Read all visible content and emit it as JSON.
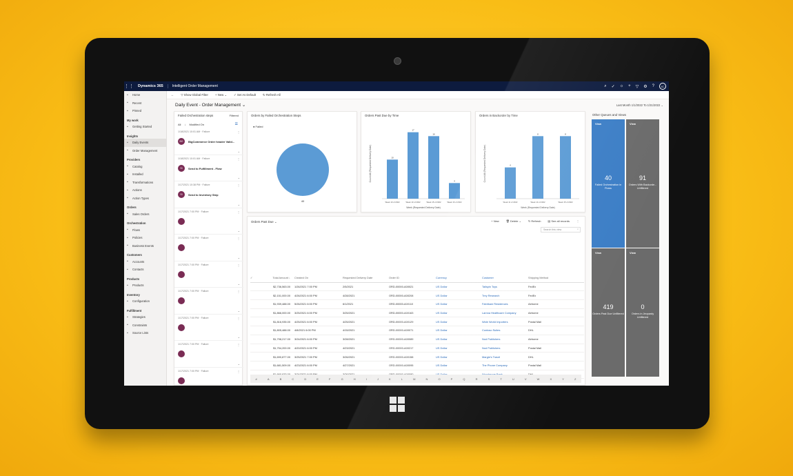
{
  "topbar": {
    "brand": "Dynamics 365",
    "app": "Intelligent Order Management",
    "avatar": "IC"
  },
  "sidebar": {
    "items": [
      {
        "label": "Home",
        "icon": "home-icon",
        "head": false
      },
      {
        "label": "Recent",
        "icon": "clock-icon",
        "head": false
      },
      {
        "label": "Pinned",
        "icon": "pin-icon",
        "head": false
      },
      {
        "label": "My work",
        "head": true
      },
      {
        "label": "Getting Started",
        "icon": "doc-icon",
        "head": false
      },
      {
        "label": "Insights",
        "head": true
      },
      {
        "label": "Daily Events",
        "icon": "chart-icon",
        "head": false,
        "active": true
      },
      {
        "label": "Order Management",
        "icon": "chart-icon",
        "head": false
      },
      {
        "label": "Providers",
        "head": true
      },
      {
        "label": "Catalog",
        "icon": "grid-icon",
        "head": false
      },
      {
        "label": "Installed",
        "icon": "download-icon",
        "head": false
      },
      {
        "label": "Transformations",
        "icon": "transform-icon",
        "head": false
      },
      {
        "label": "Actions",
        "icon": "action-icon",
        "head": false
      },
      {
        "label": "Action Types",
        "icon": "action-icon",
        "head": false
      },
      {
        "label": "Orders",
        "head": true
      },
      {
        "label": "Sales Orders",
        "icon": "doc-icon",
        "head": false
      },
      {
        "label": "Orchestration",
        "head": true
      },
      {
        "label": "Flows",
        "icon": "flow-icon",
        "head": false
      },
      {
        "label": "Policies",
        "icon": "policy-icon",
        "head": false
      },
      {
        "label": "Business Events",
        "icon": "event-icon",
        "head": false
      },
      {
        "label": "Customers",
        "head": true
      },
      {
        "label": "Accounts",
        "icon": "account-icon",
        "head": false
      },
      {
        "label": "Contacts",
        "icon": "contact-icon",
        "head": false
      },
      {
        "label": "Products",
        "head": true
      },
      {
        "label": "Products",
        "icon": "box-icon",
        "head": false
      },
      {
        "label": "Inventory",
        "head": true
      },
      {
        "label": "Configuration",
        "icon": "config-icon",
        "head": false
      },
      {
        "label": "Fulfillment",
        "head": true
      },
      {
        "label": "Strategies",
        "icon": "strategy-icon",
        "head": false
      },
      {
        "label": "Constraints",
        "icon": "constraint-icon",
        "head": false
      },
      {
        "label": "Source Lists",
        "icon": "list-icon",
        "head": false
      }
    ]
  },
  "cmdbar": {
    "global_filter": "Show Global Filter",
    "new": "New",
    "set_default": "Set As Default",
    "refresh_all": "Refresh All"
  },
  "page": {
    "title": "Daily Event - Order Management",
    "date_range": "Last Month 1/1/2022 To 1/31/2022"
  },
  "failed_steps": {
    "title": "Failed Orchestration steps",
    "filtered": "Filtered",
    "sort_all": "All",
    "sort_label": "Modified On",
    "items": [
      {
        "meta": "1/18/2021 10:01 AM · Failure",
        "initials": "BO",
        "text": "BigCommerce Order header Valid..."
      },
      {
        "meta": "1/18/2021 10:01 AM · Failure",
        "initials": "SI",
        "text": "Send to Fulfillment - Flow"
      },
      {
        "meta": "1/17/2021 10:38 PM · Failure",
        "initials": "SI",
        "text": "Send to Inventory Step"
      },
      {
        "meta": "1/17/2021 7:00 PM · Failure",
        "initials": "",
        "text": ""
      },
      {
        "meta": "1/17/2021 7:00 PM · Failure",
        "initials": "",
        "text": ""
      },
      {
        "meta": "1/17/2021 7:00 PM · Failure",
        "initials": "",
        "text": ""
      },
      {
        "meta": "1/17/2021 7:00 PM · Failure",
        "initials": "",
        "text": ""
      },
      {
        "meta": "1/17/2021 7:00 PM · Failure",
        "initials": "",
        "text": ""
      },
      {
        "meta": "1/17/2021 7:00 PM · Failure",
        "initials": "",
        "text": ""
      },
      {
        "meta": "1/17/2021 7:00 PM · Failure",
        "initials": "",
        "text": ""
      }
    ]
  },
  "chart_data": [
    {
      "type": "pie",
      "title": "Orders by Failed Orchestration Steps",
      "legend": [
        "Failed"
      ],
      "values": [
        40
      ],
      "colors": [
        "#5b9bd5"
      ]
    },
    {
      "type": "bar",
      "title": "Orders Past Due by Time",
      "categories": [
        "Week 10 of 2022",
        "Week 13 of 2022",
        "Week 15 of 2022",
        "Week 16 of 2022"
      ],
      "values": [
        10,
        17,
        16,
        4
      ],
      "ylim": [
        0,
        18
      ],
      "xlabel": "Week (Requested Delivery Date)",
      "ylabel": "Count:All (Requested Delivery Date)"
    },
    {
      "type": "bar",
      "title": "Orders in Backorder by Time",
      "categories": [
        "Week 11 of 2022",
        "Week 14 of 2022",
        "Week 15 of 2022"
      ],
      "values": [
        4,
        8,
        8
      ],
      "ylim": [
        0,
        9
      ],
      "xlabel": "Week (Requested Delivery Date)",
      "ylabel": "Count:All (Requested Delivery Date)"
    }
  ],
  "orders_grid": {
    "title": "Orders Past Due",
    "new": "New",
    "delete": "Delete",
    "refresh": "Refresh",
    "see_all": "See all records",
    "search_placeholder": "Search this view",
    "columns": [
      "Total Amount ↓",
      "Created On",
      "Requested Delivery Date",
      "Order ID",
      "Currency",
      "Customer",
      "Shipping Method"
    ],
    "rows": [
      [
        "$2,736,563.00",
        "1/26/2021 7:00 PM",
        "2/5/2021",
        "ORD-00000-A00021",
        "US Dollar",
        "Tailspin Toys",
        "FedEx"
      ],
      [
        "$2,151,000.00",
        "4/26/2021 6:00 PM",
        "4/28/2021",
        "ORD-00000-A00208",
        "US Dollar",
        "Trey Research",
        "FedEx"
      ],
      [
        "$1,939,488.00",
        "5/26/2021 6:00 PM",
        "6/1/2021",
        "ORD-00000-A00110",
        "US Dollar",
        "Fabrikam Residences",
        "Airborne"
      ],
      [
        "$1,866,000.00",
        "3/25/2021 6:00 PM",
        "3/25/2021",
        "ORD-00000-A00163",
        "US Dollar",
        "Lamna Healthcare Company",
        "Airborne"
      ],
      [
        "$1,816,935.00",
        "4/25/2021 6:00 PM",
        "4/25/2021",
        "ORD-00000-A00129",
        "US Dollar",
        "Wide World Importers",
        "Postal Mail"
      ],
      [
        "$1,805,488.00",
        "4/8/2021 6:00 PM",
        "4/15/2021",
        "ORD-00000-A00071",
        "US Dollar",
        "Contoso Suites",
        "DHL"
      ],
      [
        "$1,798,217.00",
        "3/24/2021 6:00 PM",
        "3/28/2021",
        "ORD-00000-A00089",
        "US Dollar",
        "Nod Publishers",
        "Airborne"
      ],
      [
        "$1,754,200.00",
        "4/20/2021 6:00 PM",
        "4/23/2021",
        "ORD-00000-A00217",
        "US Dollar",
        "Nod Publishers",
        "Postal Mail"
      ],
      [
        "$1,690,877.00",
        "3/25/2021 7:00 PM",
        "3/26/2021",
        "ORD-00000-A00158",
        "US Dollar",
        "Margie's Travel",
        "DHL"
      ],
      [
        "$1,681,509.00",
        "4/23/2021 6:00 PM",
        "4/27/2021",
        "ORD-00000-A00095",
        "US Dollar",
        "The Phone Company",
        "Postal Mail"
      ],
      [
        "$1,660,633.00",
        "3/24/2021 6:00 PM",
        "3/26/2021",
        "ORD-00000-A00080",
        "US Dollar",
        "Woodgrove Bank",
        "DHL"
      ]
    ],
    "alphabet": [
      "#",
      "A",
      "B",
      "C",
      "D",
      "E",
      "F",
      "G",
      "H",
      "I",
      "J",
      "K",
      "L",
      "M",
      "N",
      "O",
      "P",
      "Q",
      "R",
      "S",
      "T",
      "U",
      "V",
      "W",
      "X",
      "Y",
      "Z"
    ]
  },
  "queues": {
    "title": "Other Queues and Views",
    "tiles": [
      {
        "view": "View",
        "count": "40",
        "label": "Failed Orchestration in Flows",
        "color": "#3c7ec6"
      },
      {
        "view": "View",
        "count": "91",
        "label": "Orders With Backorde... Unfiltered",
        "color": "#6b6b6b"
      },
      {
        "view": "View",
        "count": "419",
        "label": "Orders Past Due Unfiltered",
        "color": "#6b6b6b"
      },
      {
        "view": "View",
        "count": "0",
        "label": "Orders in Jeopardy Unfiltered",
        "color": "#6b6b6b"
      }
    ]
  }
}
